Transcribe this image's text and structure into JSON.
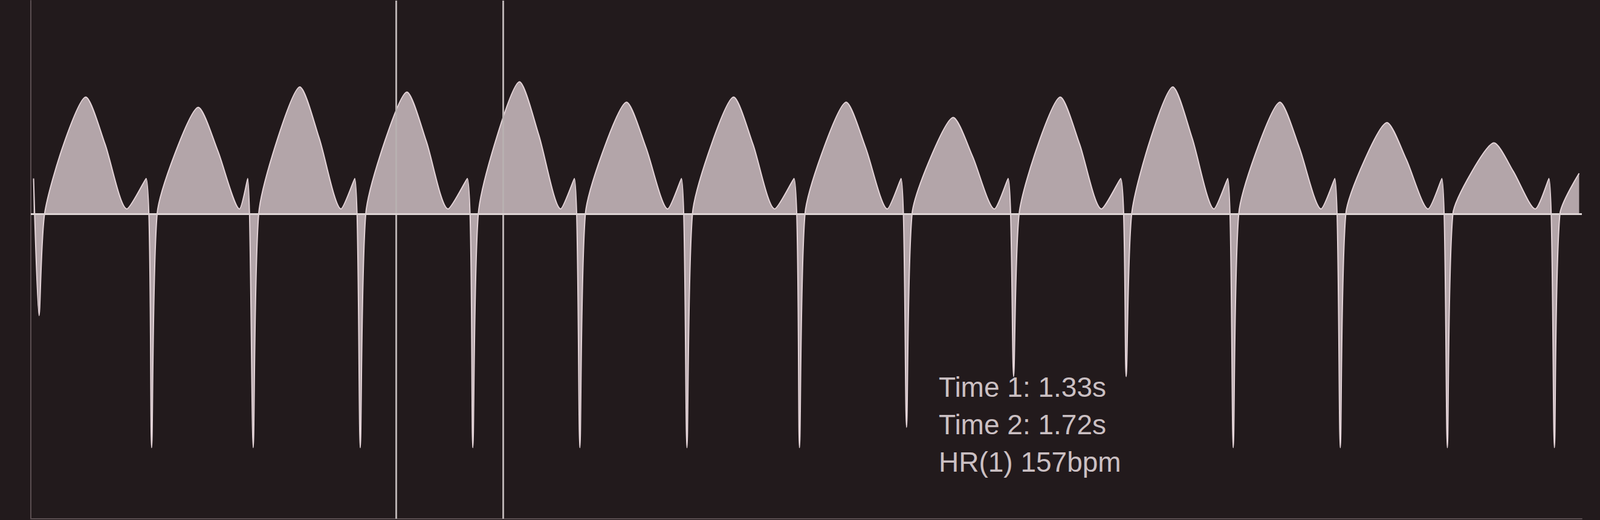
{
  "chart_data": {
    "type": "doppler",
    "x": [
      0.01,
      0.03,
      0.05,
      0.12,
      0.2,
      0.27,
      0.35,
      0.42,
      0.44,
      0.46,
      0.53,
      0.61,
      0.68,
      0.76,
      0.79,
      0.81,
      0.83,
      0.9,
      0.98,
      1.05,
      1.13,
      1.18,
      1.2,
      1.22,
      1.29,
      1.37,
      1.44,
      1.52,
      1.59,
      1.61,
      1.63,
      1.7,
      1.78,
      1.85,
      1.93,
      1.98,
      2.0,
      2.02,
      2.09,
      2.17,
      2.24,
      2.32,
      2.37,
      2.39,
      2.41,
      2.48,
      2.56,
      2.63,
      2.71,
      2.78,
      2.8,
      2.82,
      2.89,
      2.97,
      3.04,
      3.12,
      3.17,
      3.19,
      3.21,
      3.28,
      3.36,
      3.43,
      3.51,
      3.56,
      3.58,
      3.6,
      3.67,
      3.75,
      3.82,
      3.9,
      3.97,
      3.99,
      4.01,
      4.08,
      4.16,
      4.23,
      4.31,
      4.36,
      4.38,
      4.4,
      4.47,
      4.55,
      4.62,
      4.7,
      4.75,
      4.77,
      4.79,
      4.86,
      4.94,
      5.01,
      5.09,
      5.14,
      5.16,
      5.18,
      5.25,
      5.33,
      5.4,
      5.48,
      5.53,
      5.55,
      5.57,
      5.64
    ],
    "values": [
      35,
      -100,
      0,
      69,
      115,
      69,
      5,
      35,
      -230,
      0,
      63,
      105,
      63,
      5,
      35,
      -230,
      0,
      75,
      125,
      75,
      5,
      35,
      -230,
      0,
      72,
      120,
      72,
      5,
      35,
      -230,
      0,
      78,
      130,
      78,
      5,
      35,
      -230,
      0,
      66,
      110,
      66,
      5,
      35,
      -230,
      0,
      69,
      115,
      69,
      5,
      35,
      -230,
      0,
      66,
      110,
      66,
      5,
      35,
      -210,
      0,
      57,
      95,
      57,
      5,
      35,
      -160,
      0,
      69,
      115,
      69,
      5,
      35,
      -160,
      0,
      75,
      125,
      75,
      5,
      35,
      -230,
      0,
      66,
      110,
      66,
      5,
      35,
      -230,
      0,
      54,
      90,
      54,
      5,
      35,
      -230,
      0,
      42,
      70,
      42,
      5,
      35,
      -230,
      0,
      40
    ],
    "color": "#e4d4d8",
    "xlim": [
      0,
      5.65
    ],
    "ylim": [
      -300,
      210
    ],
    "baseline": 0,
    "cursors": [
      1.33,
      1.72
    ],
    "annotations": [
      "Time 1: 1.33s",
      "Time 2: 1.72s",
      "HR(1) 157bpm"
    ],
    "tick_labels": false,
    "grid": false
  }
}
